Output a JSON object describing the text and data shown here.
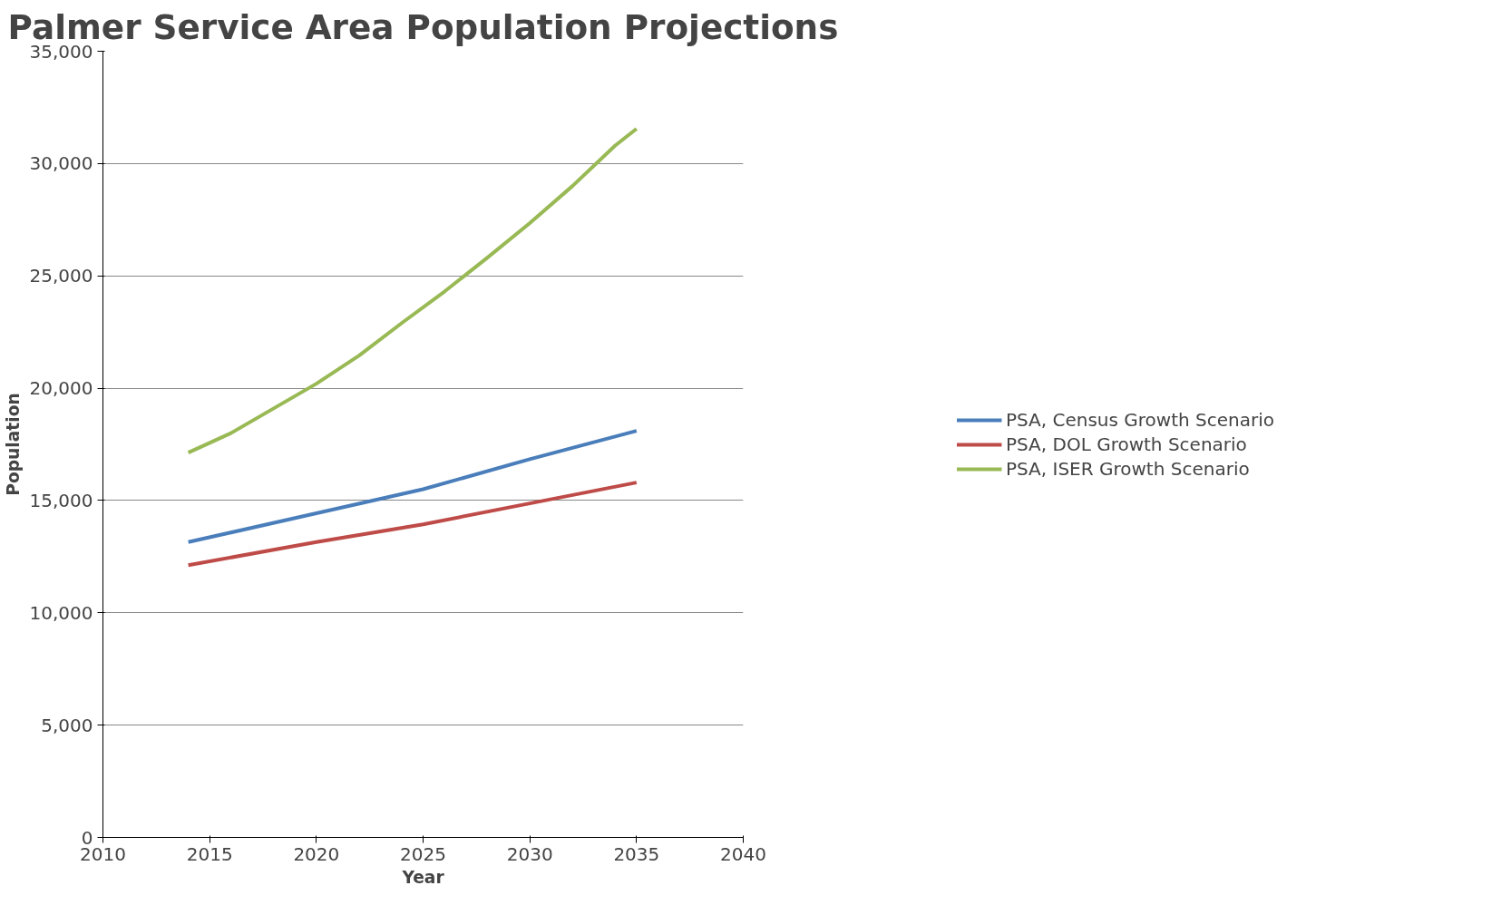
{
  "chart_data": {
    "type": "line",
    "title": "Palmer Service Area Population Projections",
    "xlabel": "Year",
    "ylabel": "Population",
    "xlim": [
      2010,
      2040
    ],
    "xticks": [
      2010,
      2015,
      2020,
      2025,
      2030,
      2035,
      2040
    ],
    "ylim": [
      0,
      35000
    ],
    "yticks": [
      {
        "value": 0,
        "label": "0"
      },
      {
        "value": 5000,
        "label": "5,000"
      },
      {
        "value": 10000,
        "label": "10,000"
      },
      {
        "value": 15000,
        "label": "15,000"
      },
      {
        "value": 20000,
        "label": "20,000"
      },
      {
        "value": 25000,
        "label": "25,000"
      },
      {
        "value": 30000,
        "label": "30,000"
      },
      {
        "value": 35000,
        "label": "35,000"
      }
    ],
    "grid": "y",
    "legend": "right",
    "marker": "none",
    "line_style": "solid",
    "series": [
      {
        "name": "PSA, Census Growth Scenario",
        "color": "#4a7ebb",
        "x": [
          2014,
          2020,
          2025,
          2030,
          2035
        ],
        "values": [
          13150,
          14430,
          15500,
          16840,
          18100
        ]
      },
      {
        "name": "PSA, DOL Growth Scenario",
        "color": "#be4b48",
        "x": [
          2014,
          2020,
          2025,
          2030,
          2035
        ],
        "values": [
          12120,
          13150,
          13940,
          14870,
          15800
        ]
      },
      {
        "name": "PSA, ISER Growth Scenario",
        "color": "#98b954",
        "x": [
          2014,
          2016,
          2018,
          2020,
          2022,
          2024,
          2026,
          2028,
          2030,
          2032,
          2034,
          2035
        ],
        "values": [
          17130,
          18000,
          19100,
          20200,
          21450,
          22900,
          24300,
          25800,
          27350,
          29000,
          30800,
          31550
        ]
      }
    ]
  }
}
